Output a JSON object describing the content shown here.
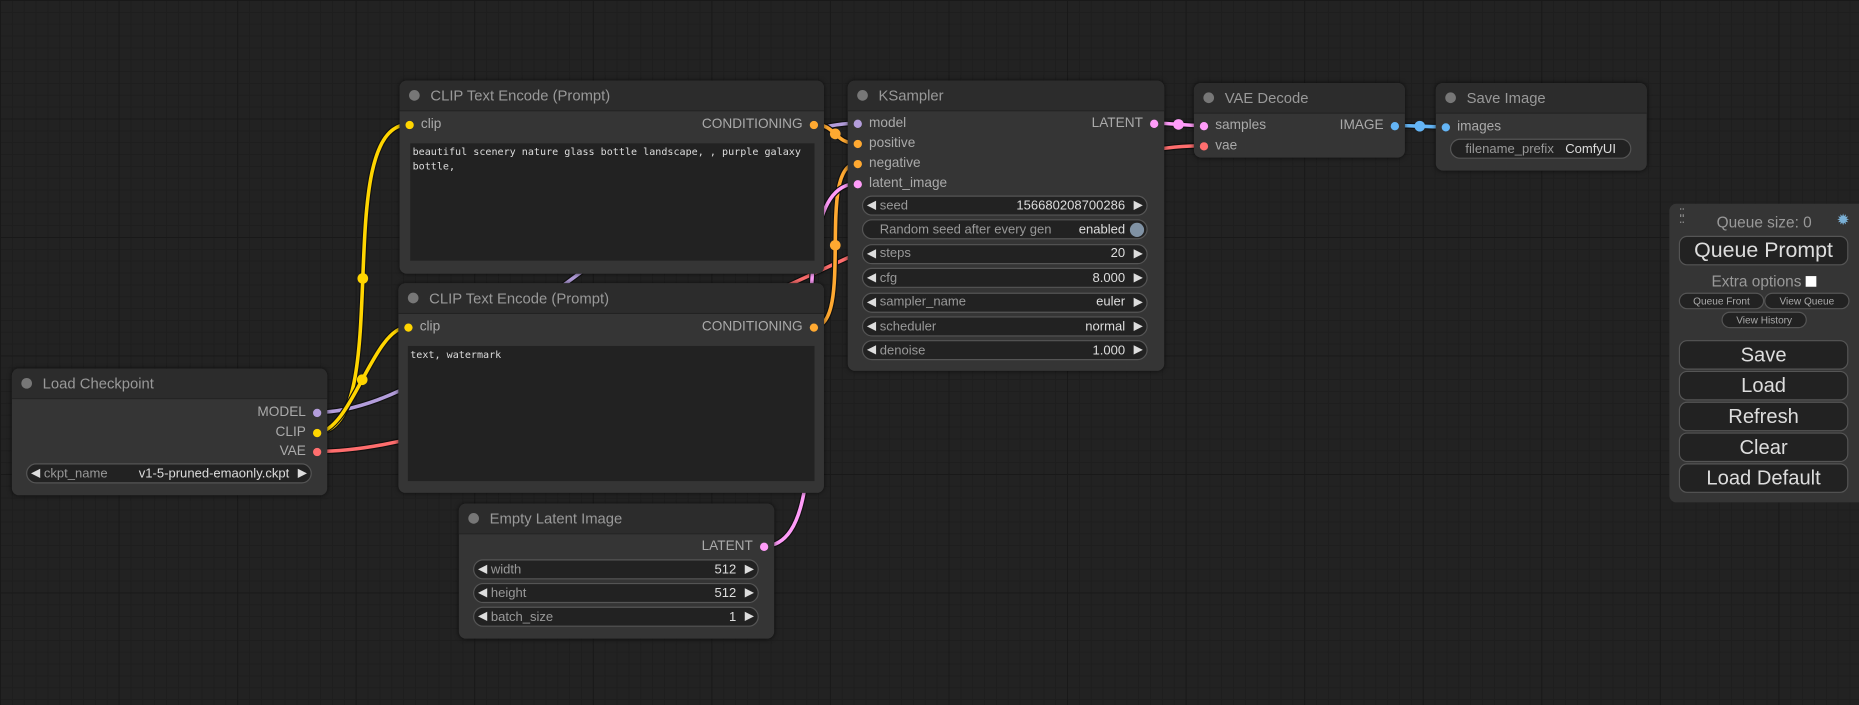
{
  "colors": {
    "model": "#b39ddb",
    "clip": "#ffd500",
    "vae": "#ff6e6e",
    "conditioning": "#ffa931",
    "latent": "#ff9cf9",
    "image": "#64b5f6"
  },
  "nodes": {
    "clip1": {
      "title": "CLIP Text Encode (Prompt)",
      "input": "clip",
      "output": "CONDITIONING",
      "text": "beautiful scenery nature glass bottle landscape, , purple galaxy bottle,"
    },
    "clip2": {
      "title": "CLIP Text Encode (Prompt)",
      "input": "clip",
      "output": "CONDITIONING",
      "text": "text, watermark"
    },
    "ckpt": {
      "title": "Load Checkpoint",
      "outputs": [
        "MODEL",
        "CLIP",
        "VAE"
      ],
      "widget": {
        "label": "ckpt_name",
        "value": "v1-5-pruned-emaonly.ckpt"
      }
    },
    "latent": {
      "title": "Empty Latent Image",
      "output": "LATENT",
      "widgets": [
        {
          "label": "width",
          "value": "512"
        },
        {
          "label": "height",
          "value": "512"
        },
        {
          "label": "batch_size",
          "value": "1"
        }
      ]
    },
    "ksampler": {
      "title": "KSampler",
      "inputs": [
        "model",
        "positive",
        "negative",
        "latent_image"
      ],
      "output": "LATENT",
      "widgets": [
        {
          "label": "seed",
          "value": "156680208700286"
        },
        {
          "label": "Random seed after every gen",
          "value": "enabled",
          "toggle": true
        },
        {
          "label": "steps",
          "value": "20"
        },
        {
          "label": "cfg",
          "value": "8.000"
        },
        {
          "label": "sampler_name",
          "value": "euler"
        },
        {
          "label": "scheduler",
          "value": "normal"
        },
        {
          "label": "denoise",
          "value": "1.000"
        }
      ]
    },
    "vaedecode": {
      "title": "VAE Decode",
      "inputs": [
        "samples",
        "vae"
      ],
      "output": "IMAGE"
    },
    "save": {
      "title": "Save Image",
      "input": "images",
      "widget": {
        "label": "filename_prefix",
        "value": "ComfyUI"
      }
    }
  },
  "menu": {
    "queue_size": "Queue size: 0",
    "queue_prompt": "Queue Prompt",
    "extra_options": "Extra options",
    "queue_front": "Queue Front",
    "view_queue": "View Queue",
    "view_history": "View History",
    "save": "Save",
    "load": "Load",
    "refresh": "Refresh",
    "clear": "Clear",
    "load_default": "Load Default"
  }
}
